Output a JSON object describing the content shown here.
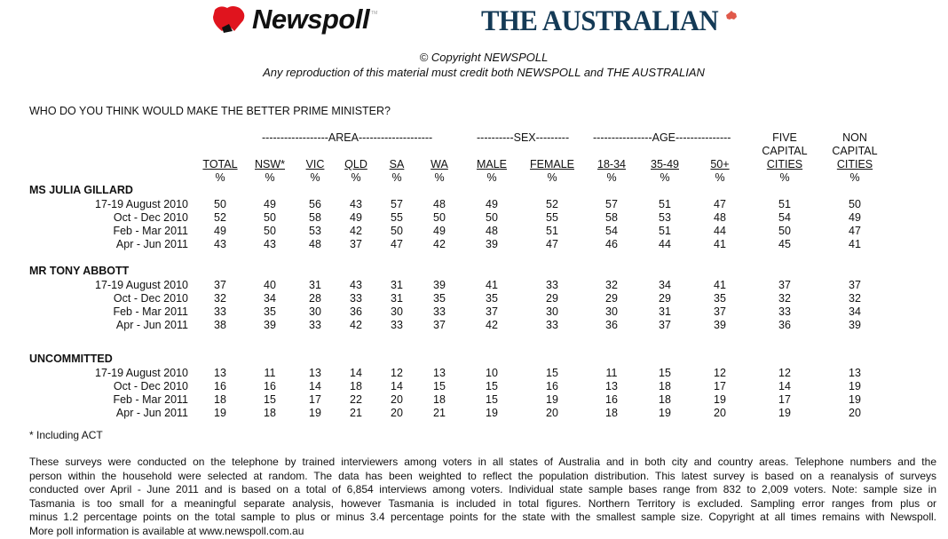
{
  "header": {
    "newspoll_logo": "Newspoll",
    "newspoll_tm": "TM",
    "australian_logo": "THE AUSTRALIAN",
    "copyright": "© Copyright NEWSPOLL",
    "reproduction_notice": "Any reproduction of this material must credit both NEWSPOLL and THE AUSTRALIAN",
    "brand_colors": {
      "newspoll_red": "#e0141e",
      "australian_navy": "#143a56",
      "map_red": "#e0594a"
    }
  },
  "question": "WHO DO YOU THINK WOULD MAKE THE BETTER PRIME MINISTER?",
  "groups": {
    "area": "------------------AREA--------------------",
    "sex": "----------SEX---------",
    "age": "----------------AGE---------------"
  },
  "columns": [
    {
      "label": [
        "TOTAL"
      ],
      "unit": "%"
    },
    {
      "label": [
        "NSW*"
      ],
      "unit": "%"
    },
    {
      "label": [
        "VIC"
      ],
      "unit": "%"
    },
    {
      "label": [
        "QLD"
      ],
      "unit": "%"
    },
    {
      "label": [
        "SA"
      ],
      "unit": "%"
    },
    {
      "label": [
        "WA"
      ],
      "unit": "%"
    },
    {
      "label": [
        "MALE"
      ],
      "unit": "%"
    },
    {
      "label": [
        "FEMALE"
      ],
      "unit": "%"
    },
    {
      "label": [
        "18-34"
      ],
      "unit": "%"
    },
    {
      "label": [
        "35-49"
      ],
      "unit": "%"
    },
    {
      "label": [
        "50+"
      ],
      "unit": "%"
    },
    {
      "label": [
        "FIVE",
        "CAPITAL",
        "CITIES"
      ],
      "unit": "%"
    },
    {
      "label": [
        "NON",
        "CAPITAL",
        "CITIES"
      ],
      "unit": "%"
    }
  ],
  "sections": [
    {
      "title": "MS JULIA GILLARD",
      "rows": [
        {
          "period": "17-19 August 2010",
          "values": [
            "50",
            "49",
            "56",
            "43",
            "57",
            "48",
            "49",
            "52",
            "57",
            "51",
            "47",
            "51",
            "50"
          ]
        },
        {
          "period": "Oct - Dec 2010",
          "values": [
            "52",
            "50",
            "58",
            "49",
            "55",
            "50",
            "50",
            "55",
            "58",
            "53",
            "48",
            "54",
            "49"
          ]
        },
        {
          "period": "Feb - Mar 2011",
          "values": [
            "49",
            "50",
            "53",
            "42",
            "50",
            "49",
            "48",
            "51",
            "54",
            "51",
            "44",
            "50",
            "47"
          ]
        },
        {
          "period": "Apr - Jun 2011",
          "values": [
            "43",
            "43",
            "48",
            "37",
            "47",
            "42",
            "39",
            "47",
            "46",
            "44",
            "41",
            "45",
            "41"
          ]
        }
      ]
    },
    {
      "title": "MR TONY ABBOTT",
      "rows": [
        {
          "period": "17-19 August 2010",
          "values": [
            "37",
            "40",
            "31",
            "43",
            "31",
            "39",
            "41",
            "33",
            "32",
            "34",
            "41",
            "37",
            "37"
          ]
        },
        {
          "period": "Oct - Dec 2010",
          "values": [
            "32",
            "34",
            "28",
            "33",
            "31",
            "35",
            "35",
            "29",
            "29",
            "29",
            "35",
            "32",
            "32"
          ]
        },
        {
          "period": "Feb - Mar 2011",
          "values": [
            "33",
            "35",
            "30",
            "36",
            "30",
            "33",
            "37",
            "30",
            "30",
            "31",
            "37",
            "33",
            "34"
          ]
        },
        {
          "period": "Apr - Jun 2011",
          "values": [
            "38",
            "39",
            "33",
            "42",
            "33",
            "37",
            "42",
            "33",
            "36",
            "37",
            "39",
            "36",
            "39"
          ]
        }
      ]
    },
    {
      "title": "UNCOMMITTED",
      "rows": [
        {
          "period": "17-19 August 2010",
          "values": [
            "13",
            "11",
            "13",
            "14",
            "12",
            "13",
            "10",
            "15",
            "11",
            "15",
            "12",
            "12",
            "13"
          ]
        },
        {
          "period": "Oct - Dec 2010",
          "values": [
            "16",
            "16",
            "14",
            "18",
            "14",
            "15",
            "15",
            "16",
            "13",
            "18",
            "17",
            "14",
            "19"
          ]
        },
        {
          "period": "Feb - Mar 2011",
          "values": [
            "18",
            "15",
            "17",
            "22",
            "20",
            "18",
            "15",
            "19",
            "16",
            "18",
            "19",
            "17",
            "19"
          ]
        },
        {
          "period": "Apr - Jun 2011",
          "values": [
            "19",
            "18",
            "19",
            "21",
            "20",
            "21",
            "19",
            "20",
            "18",
            "19",
            "20",
            "19",
            "20"
          ]
        }
      ]
    }
  ],
  "footnote": "* Including ACT",
  "methodology": [
    "These surveys were conducted on the telephone by trained interviewers among voters in all states of Australia and in both city and country areas.  Telephone numbers and the",
    "person within the household were selected at random.  The data has been weighted to reflect the population distribution. This latest survey is based on a reanalysis of surveys",
    "conducted over April - June 2011 and is based on a total of 6,854 interviews among voters. Individual state sample bases range from 832 to 2,009 voters.  Note: sample size in",
    "Tasmania is too small for a meaningful separate analysis, however Tasmania is included in total figures.  Northern Territory is excluded.  Sampling error ranges from plus or",
    "minus 1.2 percentage points on the total sample to plus or minus 3.4 percentage points for the state with the smallest sample size.  Copyright at all times remains with Newspoll.",
    "More poll information is available at www.newspoll.com.au"
  ]
}
